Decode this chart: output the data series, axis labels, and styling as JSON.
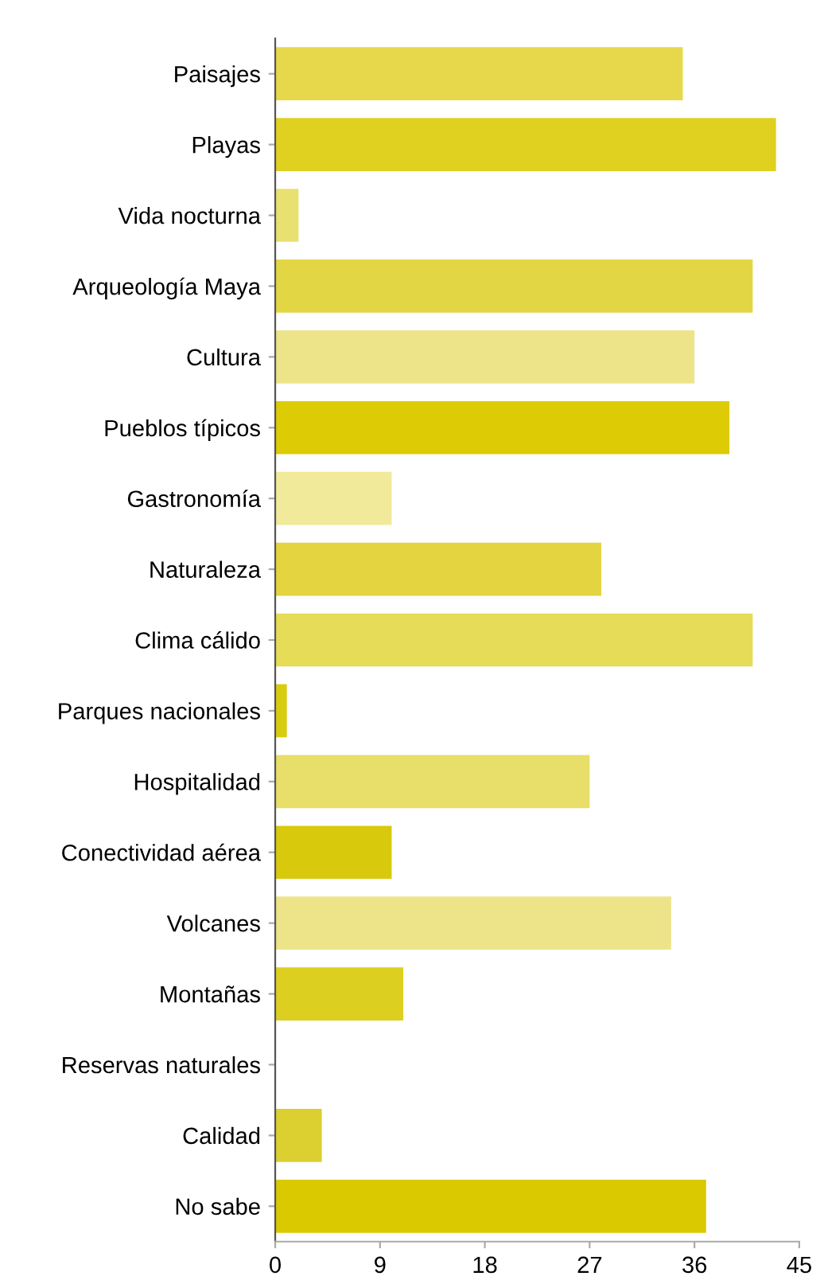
{
  "chart_data": {
    "type": "bar",
    "orientation": "horizontal",
    "categories": [
      "Paisajes",
      "Playas",
      "Vida nocturna",
      "Arqueología Maya",
      "Cultura",
      "Pueblos típicos",
      "Gastronomía",
      "Naturaleza",
      "Clima cálido",
      "Parques nacionales",
      "Hospitalidad",
      "Conectividad aérea",
      "Volcanes",
      "Montañas",
      "Reservas naturales",
      "Calidad",
      "No sabe"
    ],
    "values": [
      35,
      43,
      2,
      41,
      36,
      39,
      10,
      28,
      41,
      1,
      27,
      10,
      34,
      11,
      0,
      4,
      37
    ],
    "colors": [
      "#e6d84a",
      "#e0d020",
      "#e8e070",
      "#e3d645",
      "#ede48a",
      "#dccb05",
      "#f0ea9a",
      "#e3d440",
      "#e6dc58",
      "#d8cc10",
      "#e8de6a",
      "#d9c90c",
      "#ede489",
      "#dccf20",
      "#e0d040",
      "#dccf30",
      "#dac800"
    ],
    "xlim": [
      0,
      45
    ],
    "xticks": [
      0,
      9,
      18,
      27,
      36,
      45
    ],
    "grid": false,
    "legend": false
  }
}
